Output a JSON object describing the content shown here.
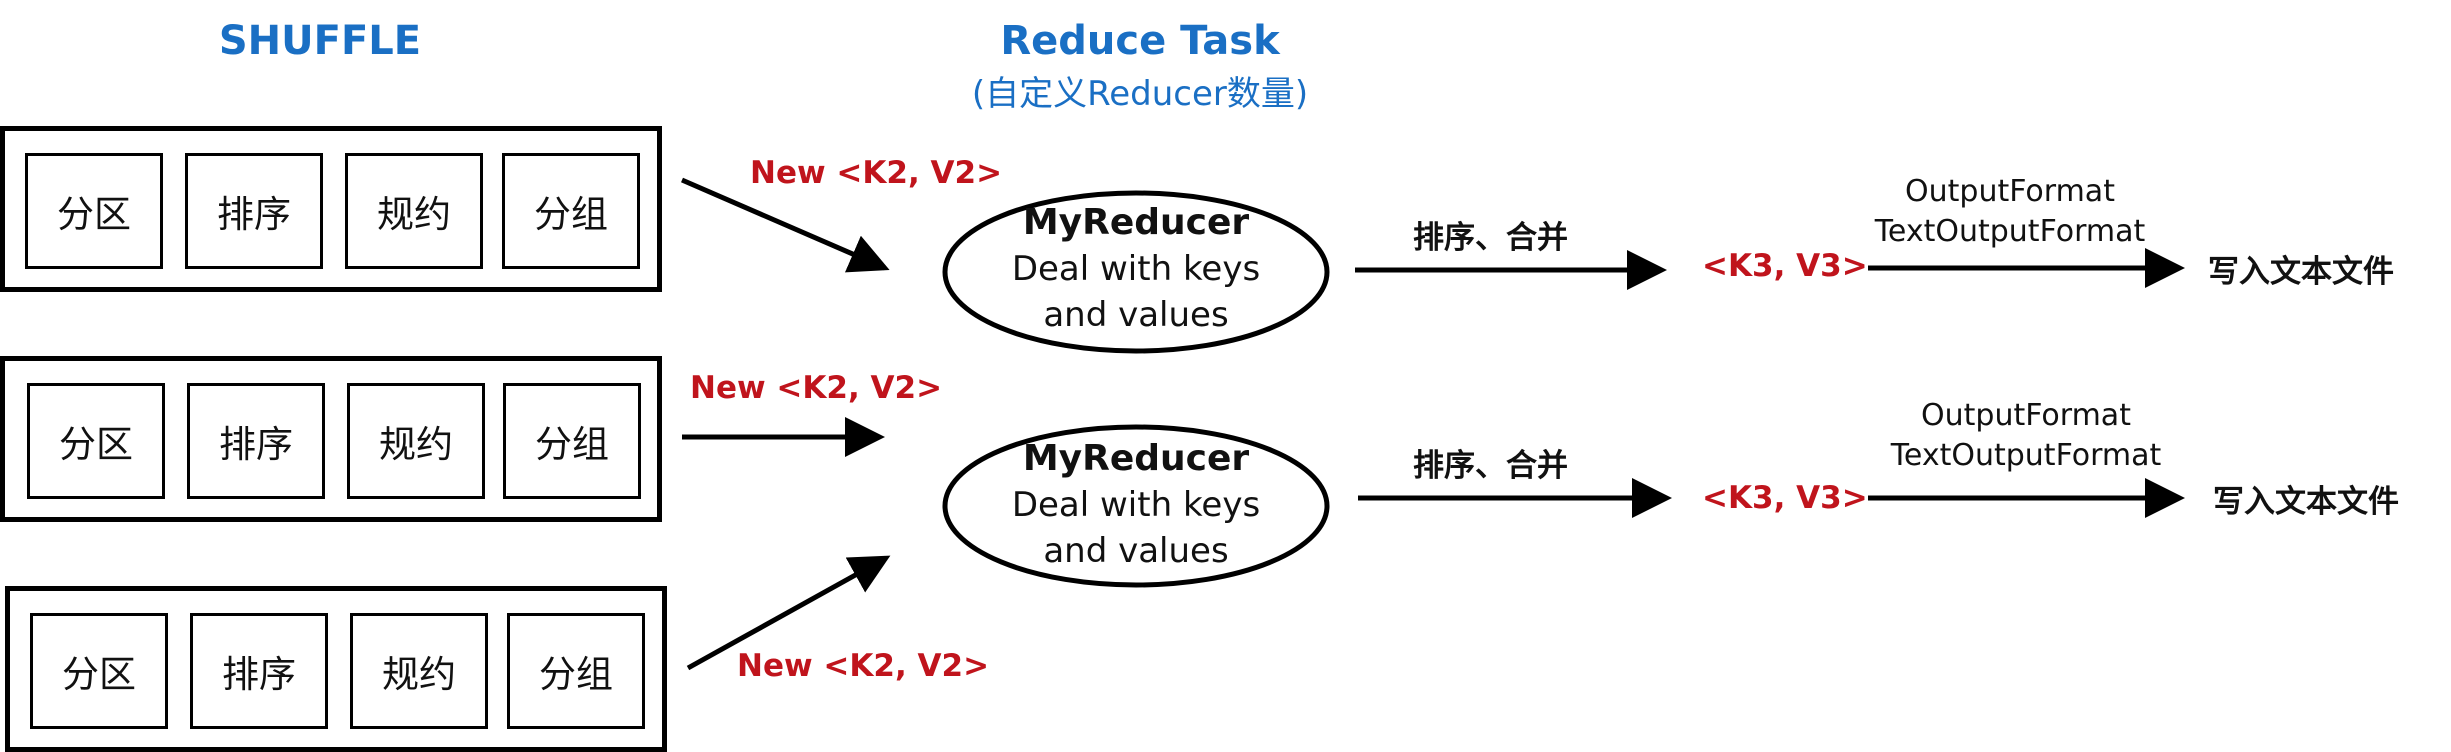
{
  "titles": {
    "shuffle": "SHUFFLE",
    "reduce_task": "Reduce Task",
    "reduce_sub": "(自定义Reducer数量)"
  },
  "shuffle_groups": [
    {
      "cells": [
        "分区",
        "排序",
        "规约",
        "分组"
      ]
    },
    {
      "cells": [
        "分区",
        "排序",
        "规约",
        "分组"
      ]
    },
    {
      "cells": [
        "分区",
        "排序",
        "规约",
        "分组"
      ]
    }
  ],
  "flow_labels": {
    "new_kv_1": "New <K2, V2>",
    "new_kv_2": "New <K2, V2>",
    "new_kv_3": "New <K2, V2>"
  },
  "reducers": [
    {
      "name": "MyReducer",
      "line1": "Deal with keys",
      "line2": "and values",
      "sort_merge": "排序、合并",
      "output_kv": "<K3, V3>",
      "format1": "OutputFormat",
      "format2": "TextOutputFormat",
      "write": "写入文本文件"
    },
    {
      "name": "MyReducer",
      "line1": "Deal with keys",
      "line2": "and values",
      "sort_merge": "排序、合并",
      "output_kv": "<K3, V3>",
      "format1": "OutputFormat",
      "format2": "TextOutputFormat",
      "write": "写入文本文件"
    }
  ],
  "colors": {
    "title_blue": "#1a6fc4",
    "label_red": "#c0141c",
    "stroke": "#000000"
  }
}
